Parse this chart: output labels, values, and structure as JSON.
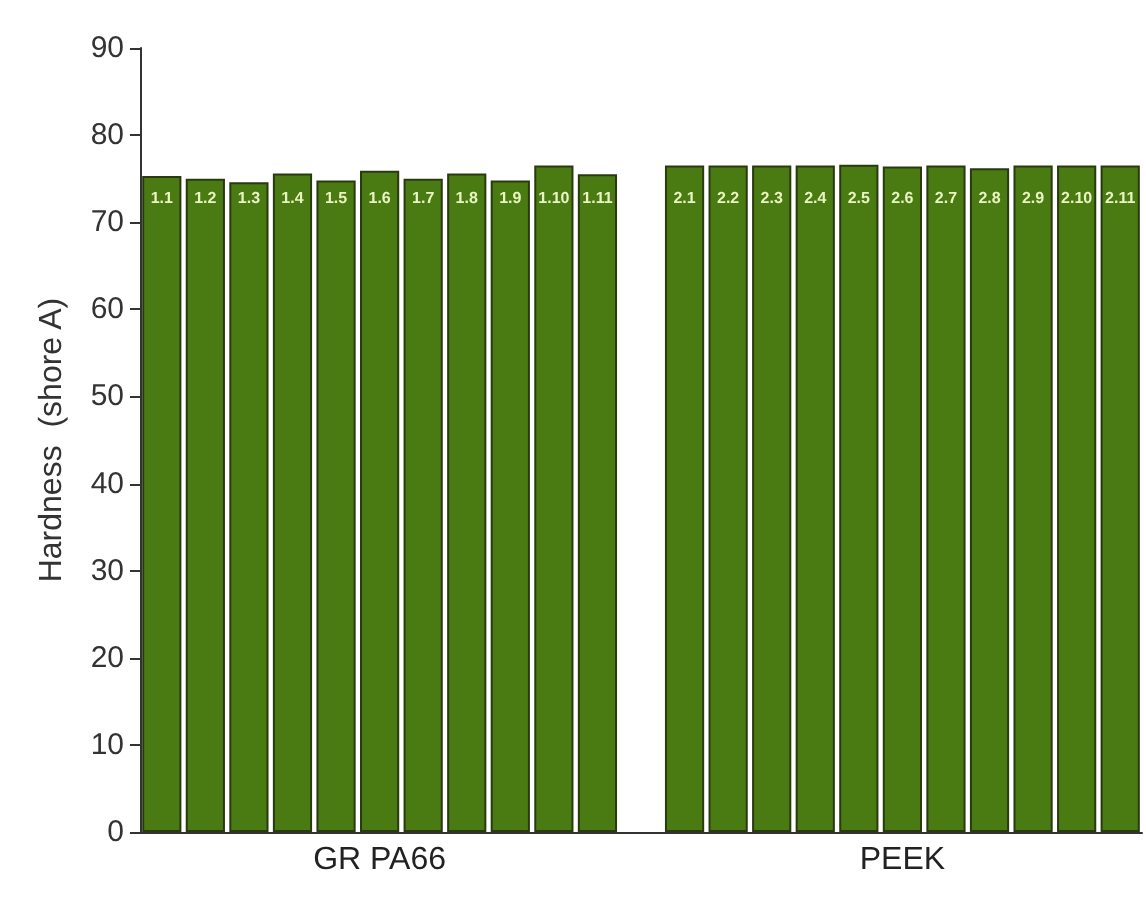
{
  "chart_data": {
    "type": "bar",
    "ylabel": "Hardness  (shore A)",
    "categories": [
      "1.1",
      "1.2",
      "1.3",
      "1.4",
      "1.5",
      "1.6",
      "1.7",
      "1.8",
      "1.9",
      "1.10",
      "1.11",
      null,
      "2.1",
      "2.2",
      "2.3",
      "2.4",
      "2.5",
      "2.6",
      "2.7",
      "2.8",
      "2.9",
      "2.10",
      "2.11"
    ],
    "values": [
      75.3,
      75.0,
      74.6,
      75.6,
      74.8,
      75.9,
      75.0,
      75.6,
      74.8,
      76.5,
      75.5,
      null,
      76.5,
      76.5,
      76.5,
      76.5,
      76.6,
      76.4,
      76.5,
      76.2,
      76.5,
      76.5,
      76.5
    ],
    "color": "#4a7a12",
    "annotations": [
      "GR PA66",
      "PEEK"
    ],
    "ylim": [
      0,
      90
    ],
    "yticks": [
      0,
      10,
      20,
      30,
      40,
      50,
      60,
      70,
      80,
      90
    ],
    "grid": false
  }
}
